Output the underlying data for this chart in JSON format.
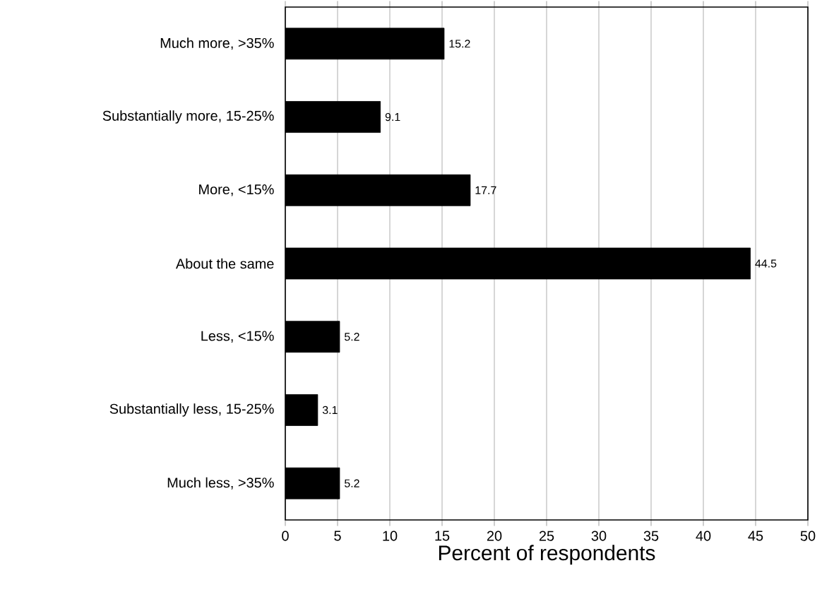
{
  "chart_data": {
    "type": "bar",
    "orientation": "horizontal",
    "xlabel": "Percent of respondents",
    "categories": [
      "Much more, >35%",
      "Substantially more, 15-25%",
      "More, <15%",
      "About the same",
      "Less, <15%",
      "Substantially less, 15-25%",
      "Much less, >35%"
    ],
    "values": [
      15.2,
      9.1,
      17.7,
      44.5,
      5.2,
      3.1,
      5.2
    ],
    "color": "#000000",
    "xlim": [
      0,
      50
    ],
    "xticks": [
      0,
      5,
      10,
      15,
      20,
      25,
      30,
      35,
      40,
      45,
      50
    ],
    "grid": "x",
    "data_labels": true
  }
}
